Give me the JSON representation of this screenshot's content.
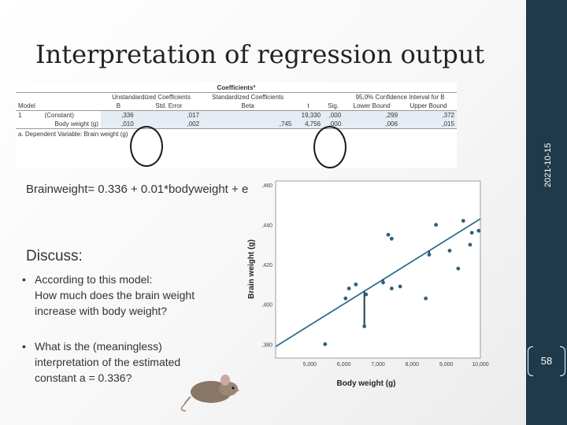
{
  "slide": {
    "title": "Interpretation of regression output",
    "date": "2021-10-15",
    "page_number": "58",
    "equation": "Brainweight= 0.336 + 0.01*bodyweight + e",
    "discuss_heading": "Discuss:",
    "bullets": [
      {
        "lines": [
          "According to this model:",
          "How much does the brain weight",
          "increase with body weight?"
        ]
      },
      {
        "lines": [
          "What is the (meaningless)",
          "interpretation of the estimated",
          "constant a = 0.336?"
        ]
      }
    ]
  },
  "coef_table": {
    "caption": "Coefficientsª",
    "group_headers": [
      "Unstandardized Coefficients",
      "Standardized Coefficients",
      "95,0% Confidence Interval for B"
    ],
    "columns": [
      "Model",
      "",
      "B",
      "Std. Error",
      "Beta",
      "t",
      "Sig.",
      "Lower Bound",
      "Upper Bound"
    ],
    "rows": [
      [
        "1",
        "(Constant)",
        ",336",
        ",017",
        "",
        "19,330",
        ",000",
        ",299",
        ",372"
      ],
      [
        "",
        "Body weight (g)",
        ",010",
        ",002",
        ",745",
        "4,756",
        ",000",
        ",006",
        ",015"
      ]
    ],
    "footnote": "a. Dependent Variable: Brain weight (g)"
  },
  "chart_data": {
    "type": "scatter",
    "xlabel": "Body weight (g)",
    "ylabel": "Brain weight (g)",
    "x_ticks": [
      "5,000",
      "6,000",
      "7,000",
      "8,000",
      "9,000",
      "10,000"
    ],
    "y_ticks": [
      ",380",
      ",400",
      ",420",
      ",440",
      ",460"
    ],
    "xlim": [
      4.0,
      10.0
    ],
    "ylim": [
      0.373,
      0.462
    ],
    "points": [
      {
        "x": 5.45,
        "y": 0.38
      },
      {
        "x": 6.05,
        "y": 0.403
      },
      {
        "x": 6.15,
        "y": 0.408
      },
      {
        "x": 6.35,
        "y": 0.41
      },
      {
        "x": 6.65,
        "y": 0.405
      },
      {
        "x": 6.6,
        "y": 0.389
      },
      {
        "x": 7.15,
        "y": 0.411
      },
      {
        "x": 7.4,
        "y": 0.408
      },
      {
        "x": 7.65,
        "y": 0.409
      },
      {
        "x": 7.3,
        "y": 0.435
      },
      {
        "x": 7.4,
        "y": 0.433
      },
      {
        "x": 8.4,
        "y": 0.403
      },
      {
        "x": 8.5,
        "y": 0.425
      },
      {
        "x": 8.7,
        "y": 0.44
      },
      {
        "x": 9.1,
        "y": 0.427
      },
      {
        "x": 9.35,
        "y": 0.418
      },
      {
        "x": 9.5,
        "y": 0.442
      },
      {
        "x": 9.75,
        "y": 0.436
      },
      {
        "x": 9.7,
        "y": 0.43
      },
      {
        "x": 9.95,
        "y": 0.437
      }
    ],
    "fit_line": {
      "intercept": 0.336,
      "slope": 0.0107
    },
    "residual_points": [
      {
        "x": 6.6,
        "y": 0.389
      },
      {
        "x": 7.15,
        "y": 0.411
      },
      {
        "x": 8.5,
        "y": 0.425
      }
    ],
    "colors": {
      "points": "#2f5f7a",
      "line": "#2f6f8e",
      "residual": "#1f3a4a"
    }
  },
  "colors": {
    "accent_bar": "#1f3a4a",
    "table_shade": "#e6ecf3"
  }
}
